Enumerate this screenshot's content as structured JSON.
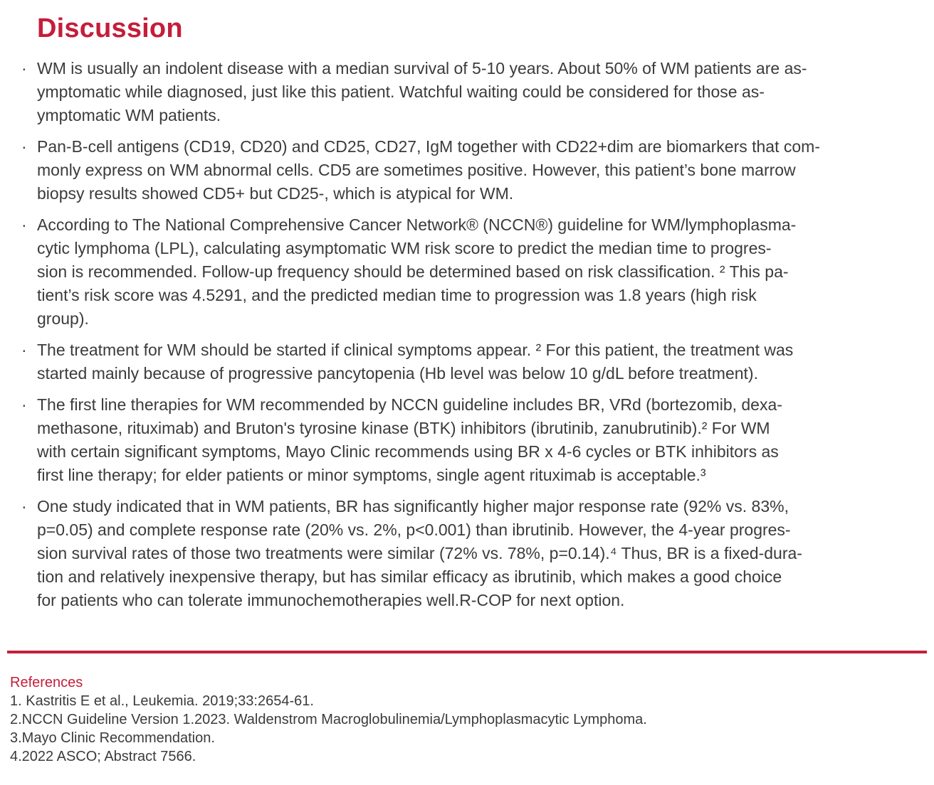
{
  "colors": {
    "accent": "#C41E3A",
    "text": "#3b3b3b",
    "background": "#ffffff"
  },
  "bullet_char": "·",
  "page": {
    "title": "Discussion"
  },
  "discussion": {
    "bullets": [
      "WM is usually an indolent disease with a median survival of 5-10 years. About 50% of WM patients are as-\nymptomatic while diagnosed, just like this patient. Watchful waiting could be considered for those as-\nymptomatic WM patients.",
      "Pan-B-cell antigens (CD19, CD20) and CD25, CD27, IgM together with CD22+dim are biomarkers that com-\nmonly express on WM abnormal cells. CD5 are sometimes positive. However, this patient’s bone marrow\nbiopsy results showed CD5+ but CD25-, which is atypical for WM.",
      "According to The National Comprehensive Cancer Network® (NCCN®) guideline for WM/lymphoplasma-\ncytic lymphoma (LPL), calculating asymptomatic WM risk score to predict the median time to progres-\nsion is recommended. Follow-up frequency should be determined based on risk classification. ² This pa-\ntient’s risk score was 4.5291, and the predicted median time to progression was 1.8 years (high risk\ngroup).",
      "The treatment for WM should be started if clinical symptoms appear. ² For this patient, the treatment was\nstarted mainly because of progressive pancytopenia (Hb level was below 10 g/dL before treatment).",
      "The first line therapies for WM recommended by NCCN guideline includes BR, VRd (bortezomib, dexa-\nmethasone, rituximab) and Bruton's tyrosine kinase (BTK) inhibitors (ibrutinib, zanubrutinib).² For WM\nwith certain significant symptoms, Mayo Clinic recommends using BR x 4-6 cycles or BTK inhibitors as\nfirst line therapy; for elder patients or minor symptoms, single agent rituximab is acceptable.³",
      "One study indicated that in WM patients, BR has significantly higher major response rate (92% vs. 83%,\np=0.05) and complete response rate (20% vs. 2%, p<0.001) than ibrutinib. However, the 4-year progres-\nsion survival rates of those two treatments were similar (72% vs. 78%, p=0.14).⁴ Thus, BR is a fixed-dura-\ntion and relatively inexpensive therapy, but has similar efficacy as ibrutinib, which makes a good choice\nfor patients who can tolerate immunochemotherapies well.R-COP for next option."
    ]
  },
  "references": {
    "heading": "References",
    "items": [
      "1. Kastritis E et al., Leukemia. 2019;33:2654-61.",
      "2.NCCN Guideline Version 1.2023. Waldenstrom Macroglobulinemia/Lymphoplasmacytic Lymphoma.",
      "3.Mayo Clinic Recommendation.",
      "4.2022 ASCO; Abstract 7566."
    ]
  }
}
